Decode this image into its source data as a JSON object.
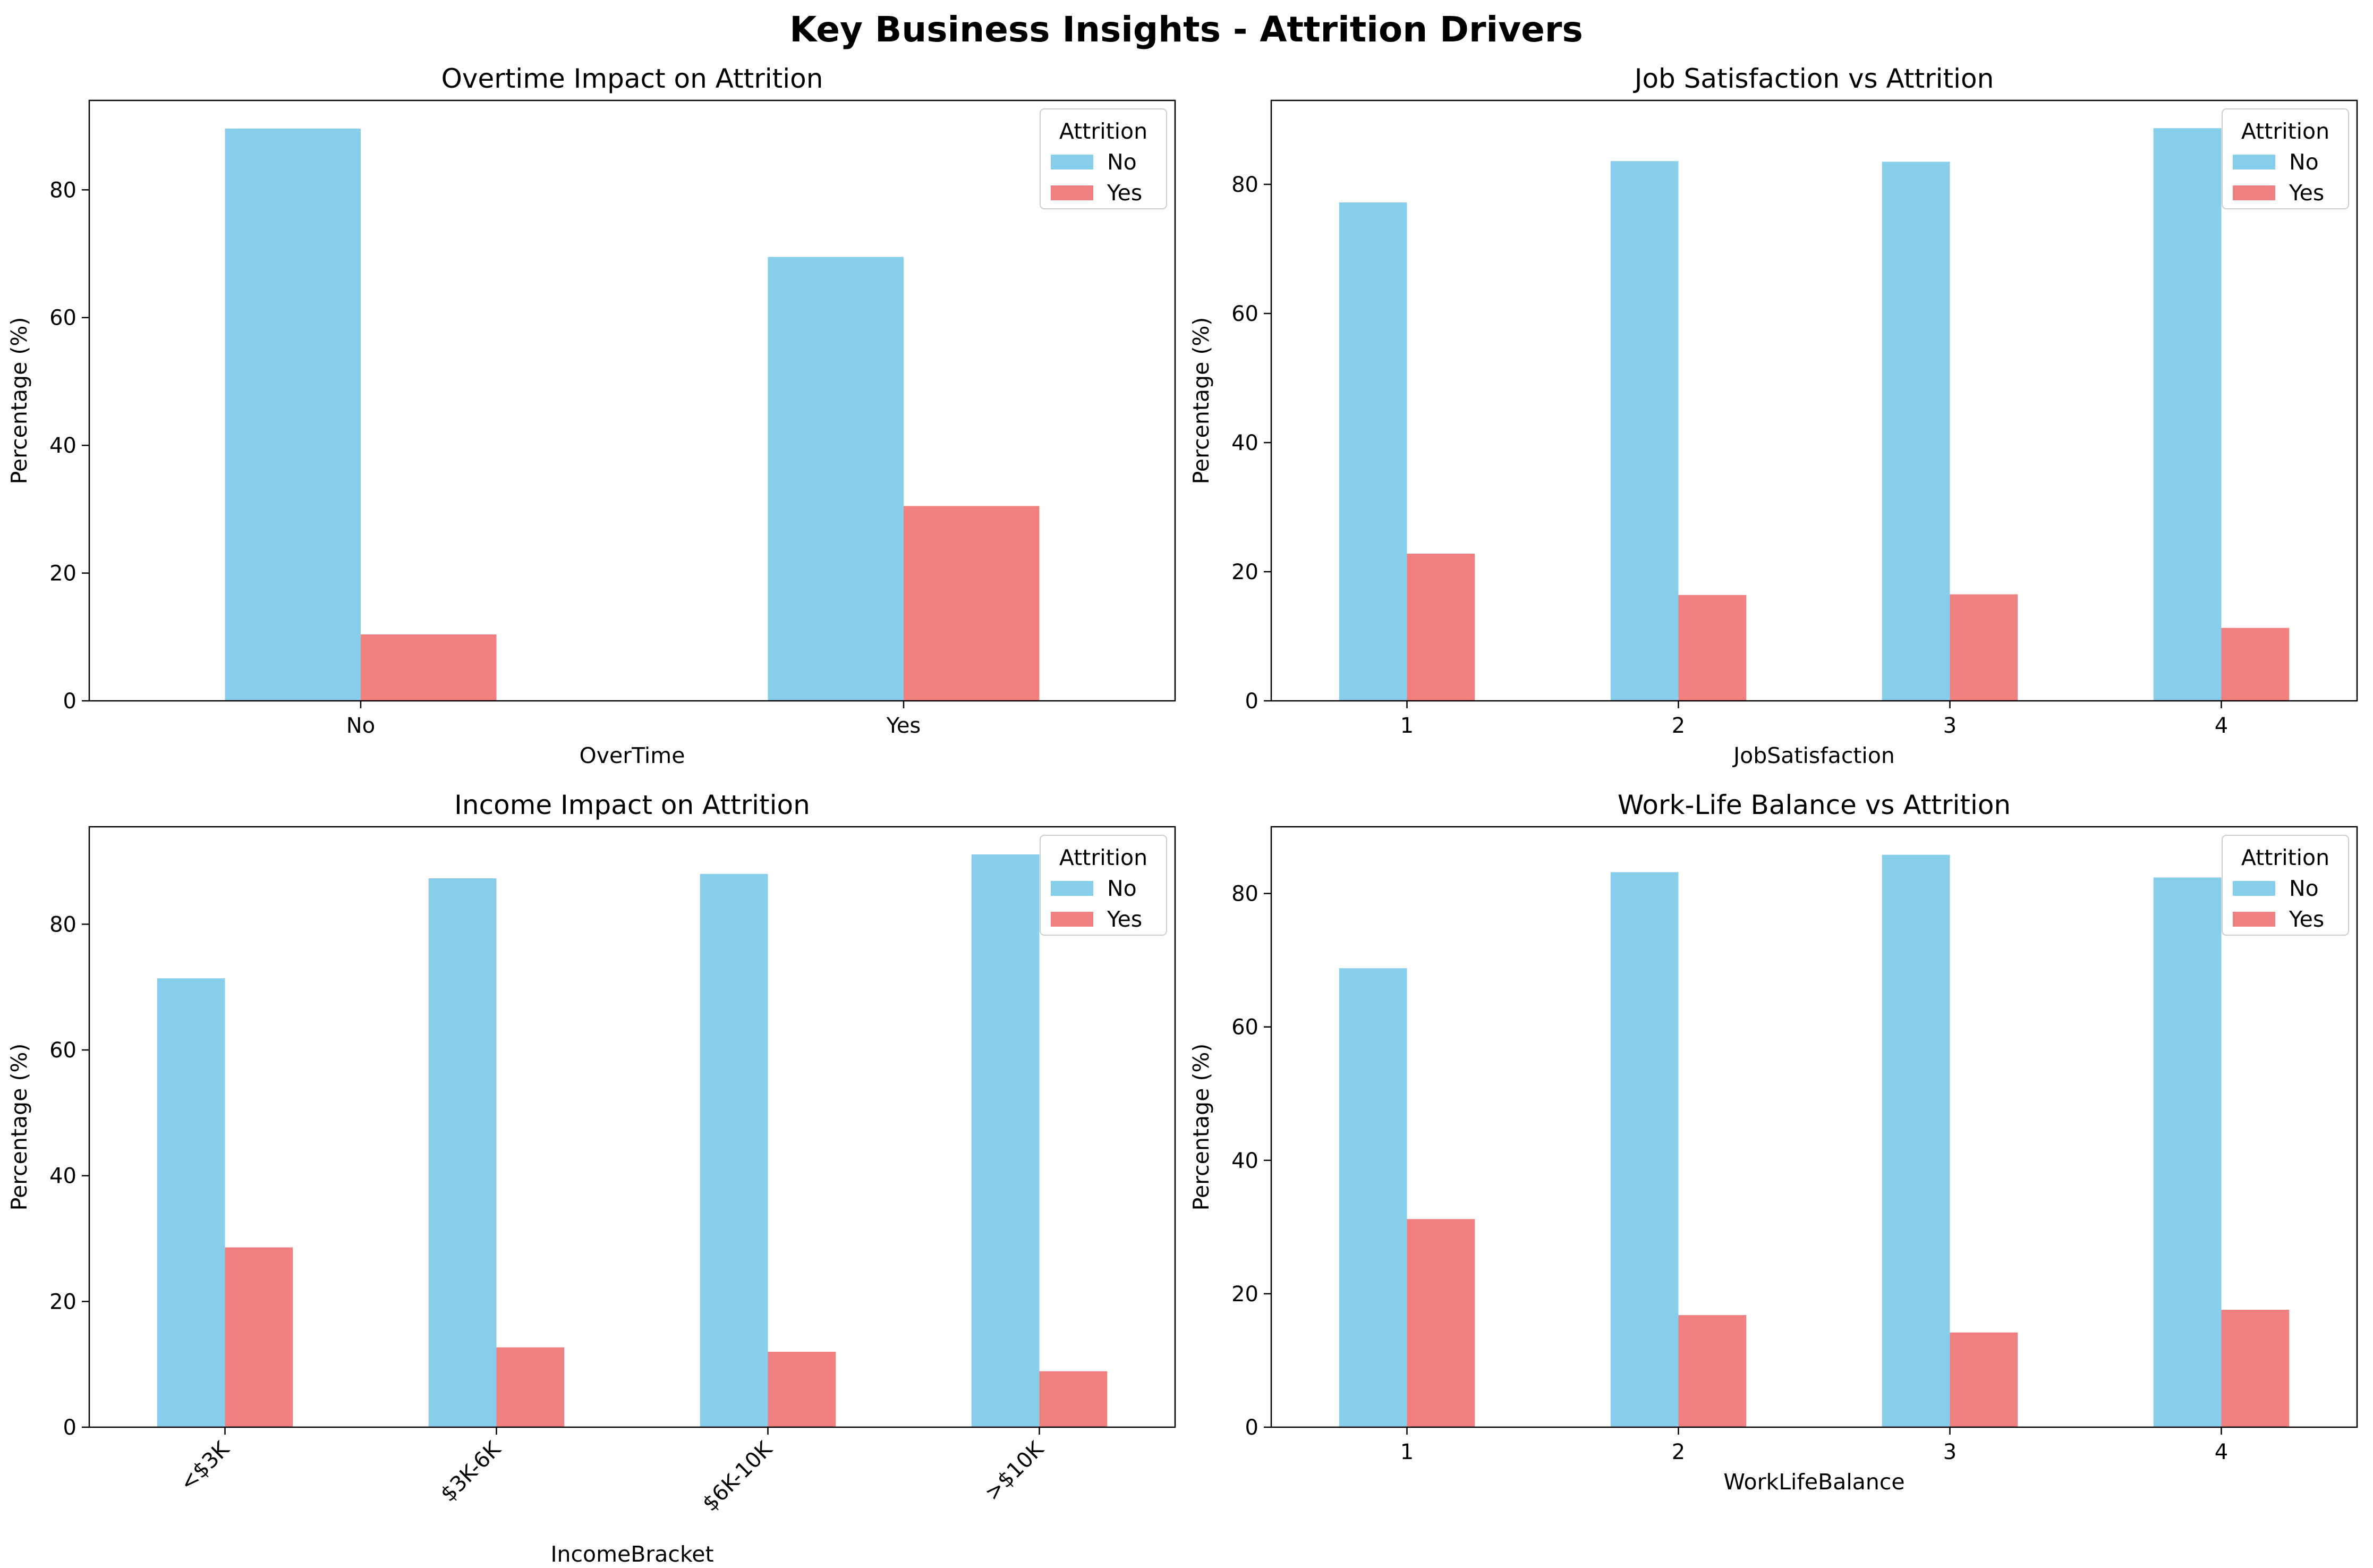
{
  "figure": {
    "title": "Key Business Insights - Attrition Drivers"
  },
  "colors": {
    "No": "#87CEEB",
    "Yes": "#F08080"
  },
  "chart_data": [
    {
      "type": "bar",
      "title": "Overtime Impact on Attrition",
      "xlabel": "OverTime",
      "ylabel": "Percentage (%)",
      "categories": [
        "No",
        "Yes"
      ],
      "tick_rotation": 0,
      "ylim": [
        0,
        94
      ],
      "yticks": [
        0,
        20,
        40,
        60,
        80
      ],
      "legend": {
        "title": "Attrition",
        "position": "upper-right"
      },
      "series": [
        {
          "name": "No",
          "values": [
            89.6,
            69.5
          ]
        },
        {
          "name": "Yes",
          "values": [
            10.4,
            30.5
          ]
        }
      ]
    },
    {
      "type": "bar",
      "title": "Job Satisfaction vs Attrition",
      "xlabel": "JobSatisfaction",
      "ylabel": "Percentage (%)",
      "categories": [
        "1",
        "2",
        "3",
        "4"
      ],
      "tick_rotation": 0,
      "ylim": [
        0,
        93
      ],
      "yticks": [
        0,
        20,
        40,
        60,
        80
      ],
      "legend": {
        "title": "Attrition",
        "position": "upper-right"
      },
      "series": [
        {
          "name": "No",
          "values": [
            77.2,
            83.6,
            83.5,
            88.7
          ]
        },
        {
          "name": "Yes",
          "values": [
            22.8,
            16.4,
            16.5,
            11.3
          ]
        }
      ]
    },
    {
      "type": "bar",
      "title": "Income Impact on Attrition",
      "xlabel": "IncomeBracket",
      "ylabel": "Percentage (%)",
      "categories": [
        "<$3K",
        "$3K-6K",
        "$6K-10K",
        ">$10K"
      ],
      "tick_rotation": -45,
      "ylim": [
        0,
        95.5
      ],
      "yticks": [
        0,
        20,
        40,
        60,
        80
      ],
      "legend": {
        "title": "Attrition",
        "position": "upper-right"
      },
      "series": [
        {
          "name": "No",
          "values": [
            71.4,
            87.3,
            88.0,
            91.1
          ]
        },
        {
          "name": "Yes",
          "values": [
            28.6,
            12.7,
            12.0,
            8.9
          ]
        }
      ]
    },
    {
      "type": "bar",
      "title": "Work-Life Balance vs Attrition",
      "xlabel": "WorkLifeBalance",
      "ylabel": "Percentage (%)",
      "categories": [
        "1",
        "2",
        "3",
        "4"
      ],
      "tick_rotation": 0,
      "ylim": [
        0,
        90
      ],
      "yticks": [
        0,
        20,
        40,
        60,
        80
      ],
      "legend": {
        "title": "Attrition",
        "position": "upper-right"
      },
      "series": [
        {
          "name": "No",
          "values": [
            68.8,
            83.2,
            85.8,
            82.4
          ]
        },
        {
          "name": "Yes",
          "values": [
            31.2,
            16.8,
            14.2,
            17.6
          ]
        }
      ]
    }
  ]
}
